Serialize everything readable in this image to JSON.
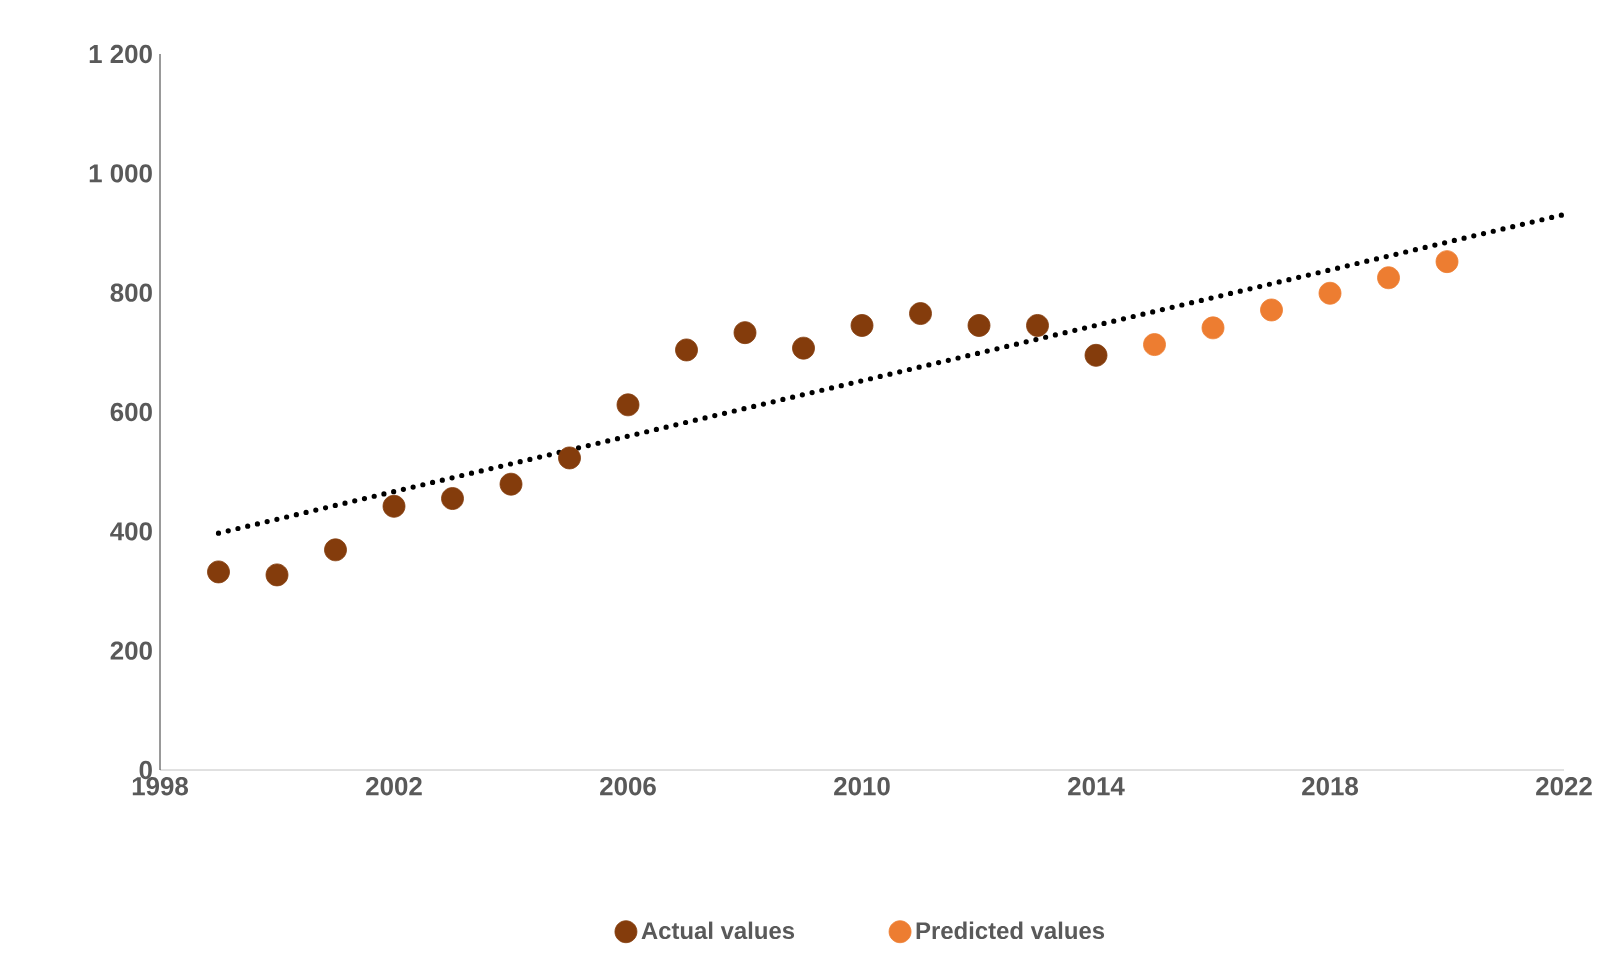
{
  "chart_data": {
    "type": "scatter",
    "series": [
      {
        "name": "Actual values",
        "color": "#843c0c",
        "marker": "circle",
        "x": [
          1999,
          2000,
          2001,
          2002,
          2003,
          2004,
          2005,
          2006,
          2007,
          2008,
          2009,
          2010,
          2011,
          2012,
          2013,
          2014
        ],
        "values": [
          332,
          327,
          369,
          442,
          455,
          479,
          523,
          612,
          704,
          733,
          707,
          745,
          765,
          745,
          745,
          695
        ]
      },
      {
        "name": "Predicted values",
        "color": "#ed7d31",
        "marker": "circle",
        "x": [
          2015,
          2016,
          2017,
          2018,
          2019,
          2020
        ],
        "values": [
          713,
          741,
          771,
          799,
          825,
          852
        ]
      },
      {
        "type": "line",
        "color": "#000000",
        "line_style": "dotted",
        "marker": "none",
        "x": [
          1999,
          2022
        ],
        "values": [
          397,
          931
        ]
      }
    ],
    "xlim": [
      1998,
      2022
    ],
    "ylim": [
      0,
      1200
    ],
    "xticks": [
      1998,
      2002,
      2006,
      2010,
      2014,
      2018,
      2022
    ],
    "yticks": [
      0,
      200,
      400,
      600,
      800,
      {
        "value": 1000,
        "label": "1 000"
      },
      {
        "value": 1200,
        "label": "1 200"
      }
    ],
    "grid": false,
    "legend": "bottom"
  }
}
